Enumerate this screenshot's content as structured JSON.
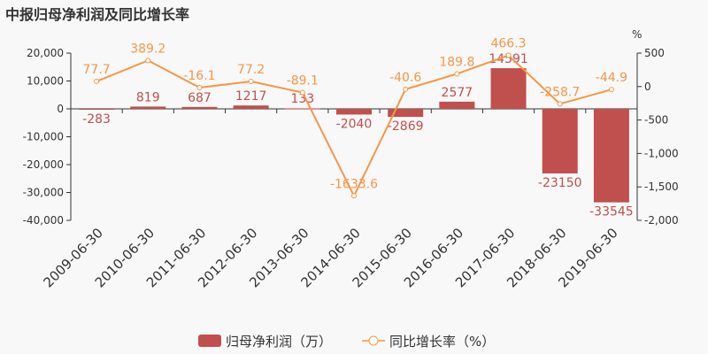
{
  "chart_data": {
    "type": "bar+line",
    "title": "中报归母净利润及同比增长率",
    "categories": [
      "2009-06-30",
      "2010-06-30",
      "2011-06-30",
      "2012-06-30",
      "2013-06-30",
      "2014-06-30",
      "2015-06-30",
      "2016-06-30",
      "2017-06-30",
      "2018-06-30",
      "2019-06-30"
    ],
    "series": [
      {
        "name": "归母净利润（万）",
        "type": "bar",
        "axis": "left",
        "color": "#c0504d",
        "values": [
          -283,
          819,
          687,
          1217,
          133,
          -2040,
          -2869,
          2577,
          14591,
          -23150,
          -33545
        ]
      },
      {
        "name": "同比增长率（%）",
        "type": "line",
        "axis": "right",
        "color": "#f79646",
        "values": [
          77.7,
          389.2,
          -16.1,
          77.2,
          -89.1,
          -1633.6,
          -40.6,
          189.8,
          466.3,
          -258.7,
          -44.9
        ]
      }
    ],
    "left_axis": {
      "ylim": [
        -40000,
        20000
      ],
      "ticks": [
        "20,000",
        "10,000",
        "0",
        "-10,000",
        "-20,000",
        "-30,000",
        "-40,000"
      ],
      "tick_values": [
        20000,
        10000,
        0,
        -10000,
        -20000,
        -30000,
        -40000
      ]
    },
    "right_axis": {
      "label": "%",
      "ylim": [
        -2000,
        500
      ],
      "ticks": [
        "500",
        "0",
        "-500",
        "-1,000",
        "-1,500",
        "-2,000"
      ],
      "tick_values": [
        500,
        0,
        -500,
        -1000,
        -1500,
        -2000
      ]
    },
    "legend": {
      "placement": "bottom",
      "items": [
        "归母净利润（万）",
        "同比增长率（%）"
      ]
    }
  }
}
